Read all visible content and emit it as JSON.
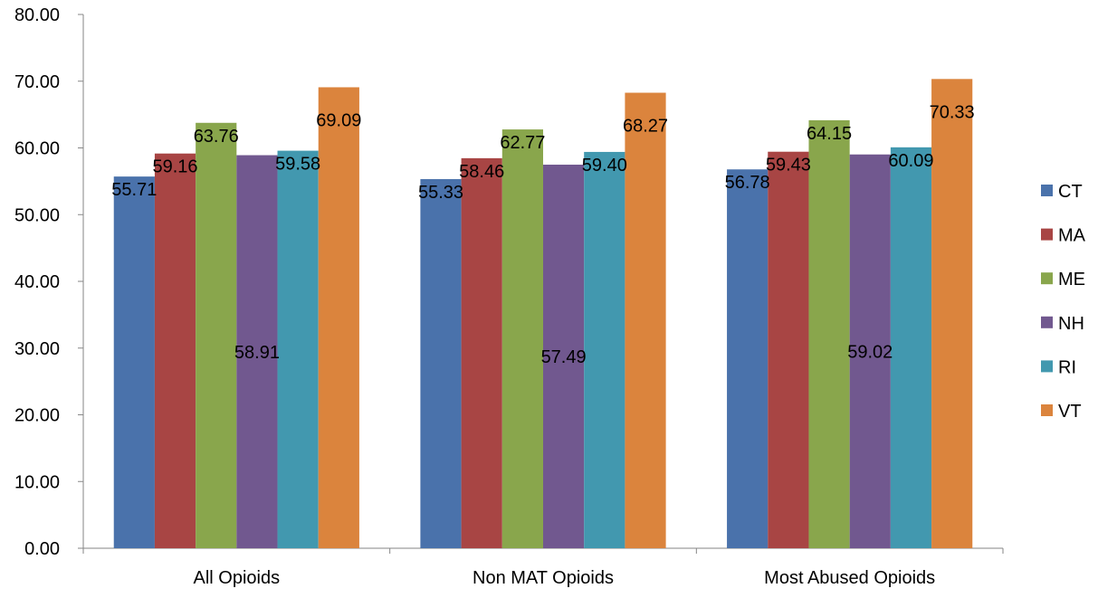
{
  "chart_data": {
    "type": "bar",
    "categories": [
      "All Opioids",
      "Non MAT Opioids",
      "Most Abused Opioids"
    ],
    "series": [
      {
        "name": "CT",
        "color": "#4A72AB",
        "values": [
          55.71,
          55.33,
          56.78
        ],
        "labels": [
          "55.71",
          "55.33",
          "56.78"
        ]
      },
      {
        "name": "MA",
        "color": "#A84544",
        "values": [
          59.16,
          58.46,
          59.43
        ],
        "labels": [
          "59.16",
          "58.46",
          "59.43"
        ]
      },
      {
        "name": "ME",
        "color": "#89A64C",
        "values": [
          63.76,
          62.77,
          64.15
        ],
        "labels": [
          "63.76",
          "62.77",
          "64.15"
        ]
      },
      {
        "name": "NH",
        "color": "#71588F",
        "values": [
          58.91,
          57.49,
          59.02
        ],
        "labels": [
          "58.91",
          "57.49",
          "59.02"
        ]
      },
      {
        "name": "RI",
        "color": "#4298AF",
        "values": [
          59.58,
          59.4,
          60.09
        ],
        "labels": [
          "59.58",
          "59.40",
          "60.09"
        ]
      },
      {
        "name": "VT",
        "color": "#DB843D",
        "values": [
          69.09,
          68.27,
          70.33
        ],
        "labels": [
          "69.09",
          "68.27",
          "70.33"
        ]
      }
    ],
    "ylim": [
      0,
      80
    ],
    "yticks": [
      "0.00",
      "10.00",
      "20.00",
      "30.00",
      "40.00",
      "50.00",
      "60.00",
      "70.00",
      "80.00"
    ],
    "grid": false,
    "legend": "right",
    "title": "",
    "xlabel": "",
    "ylabel": ""
  }
}
